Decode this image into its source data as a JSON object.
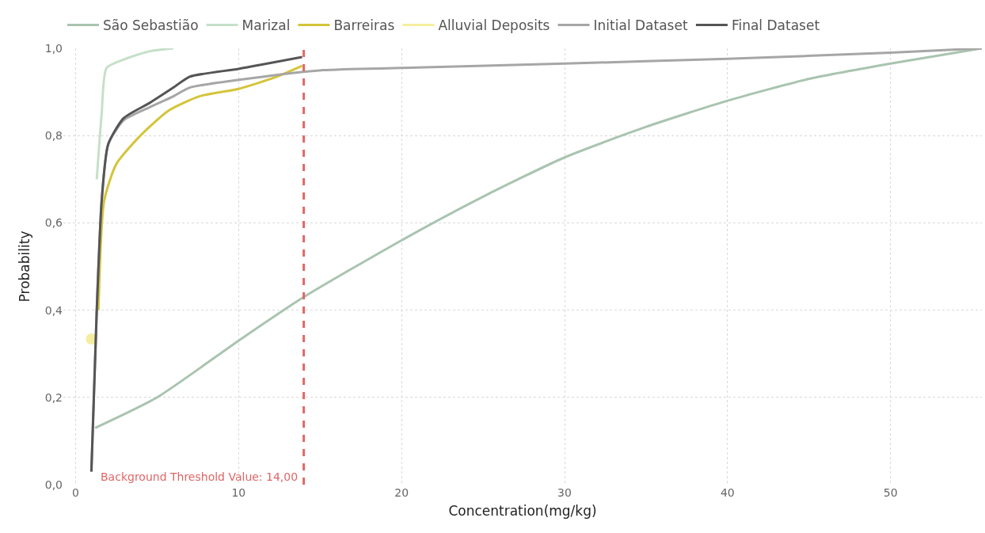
{
  "chart_data": {
    "type": "line",
    "xlabel": "Concentration(mg/kg)",
    "ylabel": "Probability",
    "xlim": [
      -0.75,
      55.6
    ],
    "xticks": [
      0,
      10,
      20,
      30,
      40,
      50
    ],
    "ylim": [
      0,
      1
    ],
    "yticks": [
      {
        "value": 0,
        "label": "0,0"
      },
      {
        "value": 0.2,
        "label": "0,2"
      },
      {
        "value": 0.4,
        "label": "0,4"
      },
      {
        "value": 0.6,
        "label": "0,6"
      },
      {
        "value": 0.8,
        "label": "0,8"
      },
      {
        "value": 1,
        "label": "1,0"
      }
    ],
    "grid": true,
    "legend": "top left",
    "line_style": "solid",
    "series": [
      {
        "name": "São Sebastião",
        "color": "#a9c4b0",
        "x": [
          1.2,
          5,
          10,
          14,
          20,
          25,
          30,
          35,
          40,
          45,
          50,
          55.6
        ],
        "values": [
          0.13,
          0.2,
          0.33,
          0.43,
          0.56,
          0.66,
          0.75,
          0.82,
          0.88,
          0.93,
          0.965,
          1.0
        ]
      },
      {
        "name": "Marizal",
        "color": "#c5e0c8",
        "x": [
          1.3,
          1.6,
          1.9,
          3,
          4.5,
          6
        ],
        "values": [
          0.7,
          0.85,
          0.955,
          0.975,
          0.993,
          1.0
        ]
      },
      {
        "name": "Barreiras",
        "color": "#d4c43a",
        "x": [
          1.4,
          1.75,
          2.5,
          3.9,
          5.7,
          7.6,
          10,
          12.2,
          13.9
        ],
        "values": [
          0.4,
          0.65,
          0.735,
          0.797,
          0.857,
          0.89,
          0.907,
          0.933,
          0.96
        ]
      },
      {
        "name": "Alluvial Deposits",
        "color": "#f5ee9e",
        "type": "scatter",
        "marker": "circle",
        "x": [
          0.97
        ],
        "values": [
          0.334
        ]
      },
      {
        "name": "Initial Dataset",
        "color": "#a6a6a6",
        "x": [
          0.97,
          1.3,
          1.6,
          2,
          2.95,
          4.55,
          6,
          7,
          10.5,
          15.2,
          20,
          30,
          40,
          50,
          55.6
        ],
        "values": [
          0.03,
          0.4,
          0.65,
          0.78,
          0.835,
          0.865,
          0.89,
          0.91,
          0.93,
          0.95,
          0.955,
          0.965,
          0.976,
          0.99,
          1.0
        ]
      },
      {
        "name": "Final Dataset",
        "color": "#555555",
        "x": [
          0.97,
          1.3,
          1.6,
          2,
          2.95,
          4.55,
          6,
          7,
          10,
          13.9
        ],
        "values": [
          0.03,
          0.4,
          0.65,
          0.78,
          0.84,
          0.875,
          0.91,
          0.935,
          0.953,
          0.98
        ]
      }
    ],
    "ref_lines": [
      {
        "axis": "x",
        "value": 14,
        "label": "Background Threshold Value: 14,00",
        "color": "#e06666",
        "line_style": "dashed"
      }
    ]
  }
}
